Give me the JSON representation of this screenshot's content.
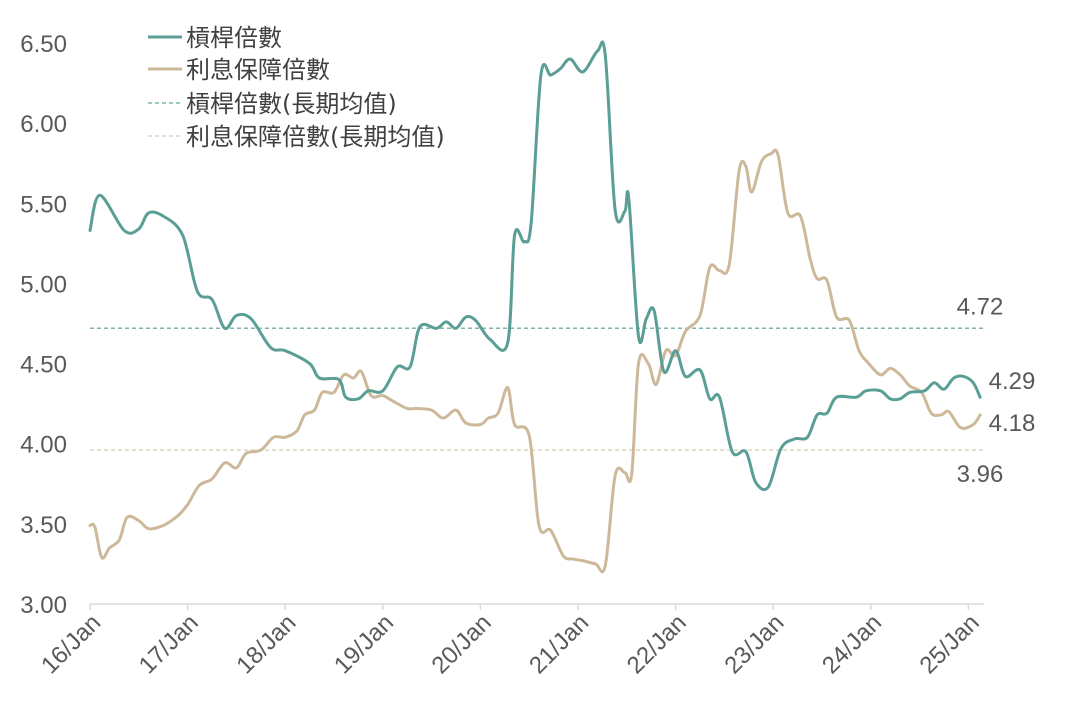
{
  "chart_data": {
    "type": "line",
    "x_tick_labels": [
      "16/Jan",
      "17/Jan",
      "18/Jan",
      "19/Jan",
      "20/Jan",
      "21/Jan",
      "22/Jan",
      "23/Jan",
      "24/Jan",
      "25/Jan"
    ],
    "y_tick_labels": [
      "3.00",
      "3.50",
      "4.00",
      "4.50",
      "5.00",
      "5.50",
      "6.00",
      "6.50"
    ],
    "ylim": [
      3.0,
      6.5
    ],
    "xlim": [
      2016.0,
      2025.16
    ],
    "grid": false,
    "legend_position": "top-left",
    "colors": {
      "leverage": "#5a9e96",
      "interest_coverage": "#cdb99a",
      "leverage_avg": "#7fb5ae",
      "interest_coverage_avg": "#ddd3bd",
      "axis": "#d9d9d9"
    },
    "series": [
      {
        "name": "槓桿倍數",
        "key": "leverage",
        "end_label": "4.29",
        "points": [
          [
            2016.0,
            5.33
          ],
          [
            2016.1,
            5.55
          ],
          [
            2016.35,
            5.33
          ],
          [
            2016.5,
            5.34
          ],
          [
            2016.6,
            5.44
          ],
          [
            2016.75,
            5.42
          ],
          [
            2016.95,
            5.3
          ],
          [
            2017.1,
            4.95
          ],
          [
            2017.25,
            4.9
          ],
          [
            2017.38,
            4.72
          ],
          [
            2017.5,
            4.8
          ],
          [
            2017.65,
            4.78
          ],
          [
            2017.85,
            4.6
          ],
          [
            2018.0,
            4.58
          ],
          [
            2018.25,
            4.5
          ],
          [
            2018.35,
            4.41
          ],
          [
            2018.55,
            4.4
          ],
          [
            2018.62,
            4.29
          ],
          [
            2018.75,
            4.28
          ],
          [
            2018.85,
            4.33
          ],
          [
            2019.0,
            4.33
          ],
          [
            2019.15,
            4.48
          ],
          [
            2019.28,
            4.48
          ],
          [
            2019.38,
            4.73
          ],
          [
            2019.55,
            4.72
          ],
          [
            2019.65,
            4.76
          ],
          [
            2019.75,
            4.72
          ],
          [
            2019.85,
            4.79
          ],
          [
            2019.95,
            4.77
          ],
          [
            2020.1,
            4.65
          ],
          [
            2020.28,
            4.63
          ],
          [
            2020.35,
            5.3
          ],
          [
            2020.45,
            5.26
          ],
          [
            2020.52,
            5.38
          ],
          [
            2020.62,
            6.3
          ],
          [
            2020.72,
            6.3
          ],
          [
            2020.82,
            6.34
          ],
          [
            2020.92,
            6.4
          ],
          [
            2021.05,
            6.32
          ],
          [
            2021.2,
            6.45
          ],
          [
            2021.28,
            6.42
          ],
          [
            2021.38,
            5.46
          ],
          [
            2021.48,
            5.45
          ],
          [
            2021.52,
            5.53
          ],
          [
            2021.62,
            4.67
          ],
          [
            2021.7,
            4.78
          ],
          [
            2021.78,
            4.83
          ],
          [
            2021.88,
            4.45
          ],
          [
            2022.0,
            4.58
          ],
          [
            2022.1,
            4.42
          ],
          [
            2022.25,
            4.46
          ],
          [
            2022.35,
            4.28
          ],
          [
            2022.45,
            4.29
          ],
          [
            2022.58,
            3.95
          ],
          [
            2022.72,
            3.95
          ],
          [
            2022.82,
            3.76
          ],
          [
            2022.95,
            3.73
          ],
          [
            2023.08,
            3.97
          ],
          [
            2023.22,
            4.03
          ],
          [
            2023.35,
            4.04
          ],
          [
            2023.45,
            4.18
          ],
          [
            2023.55,
            4.19
          ],
          [
            2023.65,
            4.29
          ],
          [
            2023.85,
            4.29
          ],
          [
            2023.95,
            4.33
          ],
          [
            2024.1,
            4.33
          ],
          [
            2024.2,
            4.28
          ],
          [
            2024.3,
            4.28
          ],
          [
            2024.4,
            4.32
          ],
          [
            2024.55,
            4.33
          ],
          [
            2024.65,
            4.38
          ],
          [
            2024.75,
            4.34
          ],
          [
            2024.85,
            4.41
          ],
          [
            2024.95,
            4.42
          ],
          [
            2025.05,
            4.38
          ],
          [
            2025.12,
            4.29
          ]
        ]
      },
      {
        "name": "利息保障倍數",
        "key": "interest_coverage",
        "end_label": "4.18",
        "points": [
          [
            2016.0,
            3.49
          ],
          [
            2016.05,
            3.48
          ],
          [
            2016.12,
            3.29
          ],
          [
            2016.2,
            3.35
          ],
          [
            2016.3,
            3.4
          ],
          [
            2016.38,
            3.54
          ],
          [
            2016.5,
            3.52
          ],
          [
            2016.6,
            3.47
          ],
          [
            2016.75,
            3.49
          ],
          [
            2016.9,
            3.55
          ],
          [
            2017.0,
            3.62
          ],
          [
            2017.12,
            3.74
          ],
          [
            2017.25,
            3.78
          ],
          [
            2017.38,
            3.88
          ],
          [
            2017.5,
            3.85
          ],
          [
            2017.6,
            3.94
          ],
          [
            2017.75,
            3.96
          ],
          [
            2017.88,
            4.04
          ],
          [
            2018.0,
            4.04
          ],
          [
            2018.12,
            4.08
          ],
          [
            2018.2,
            4.18
          ],
          [
            2018.3,
            4.21
          ],
          [
            2018.38,
            4.32
          ],
          [
            2018.5,
            4.32
          ],
          [
            2018.6,
            4.43
          ],
          [
            2018.7,
            4.41
          ],
          [
            2018.78,
            4.45
          ],
          [
            2018.88,
            4.3
          ],
          [
            2019.0,
            4.3
          ],
          [
            2019.12,
            4.26
          ],
          [
            2019.25,
            4.22
          ],
          [
            2019.35,
            4.22
          ],
          [
            2019.5,
            4.21
          ],
          [
            2019.62,
            4.16
          ],
          [
            2019.75,
            4.21
          ],
          [
            2019.85,
            4.13
          ],
          [
            2020.0,
            4.12
          ],
          [
            2020.08,
            4.16
          ],
          [
            2020.18,
            4.19
          ],
          [
            2020.28,
            4.35
          ],
          [
            2020.35,
            4.12
          ],
          [
            2020.5,
            4.05
          ],
          [
            2020.6,
            3.49
          ],
          [
            2020.72,
            3.46
          ],
          [
            2020.85,
            3.3
          ],
          [
            2020.95,
            3.28
          ],
          [
            2021.05,
            3.27
          ],
          [
            2021.18,
            3.25
          ],
          [
            2021.28,
            3.24
          ],
          [
            2021.38,
            3.8
          ],
          [
            2021.48,
            3.82
          ],
          [
            2021.55,
            3.81
          ],
          [
            2021.62,
            4.5
          ],
          [
            2021.72,
            4.5
          ],
          [
            2021.8,
            4.37
          ],
          [
            2021.9,
            4.58
          ],
          [
            2022.0,
            4.55
          ],
          [
            2022.1,
            4.7
          ],
          [
            2022.25,
            4.8
          ],
          [
            2022.35,
            5.1
          ],
          [
            2022.45,
            5.08
          ],
          [
            2022.55,
            5.12
          ],
          [
            2022.65,
            5.7
          ],
          [
            2022.72,
            5.73
          ],
          [
            2022.78,
            5.57
          ],
          [
            2022.88,
            5.76
          ],
          [
            2022.98,
            5.81
          ],
          [
            2023.05,
            5.8
          ],
          [
            2023.15,
            5.44
          ],
          [
            2023.28,
            5.42
          ],
          [
            2023.38,
            5.15
          ],
          [
            2023.45,
            5.03
          ],
          [
            2023.55,
            5.02
          ],
          [
            2023.65,
            4.79
          ],
          [
            2023.78,
            4.77
          ],
          [
            2023.88,
            4.58
          ],
          [
            2023.98,
            4.5
          ],
          [
            2024.1,
            4.43
          ],
          [
            2024.2,
            4.47
          ],
          [
            2024.3,
            4.43
          ],
          [
            2024.4,
            4.36
          ],
          [
            2024.52,
            4.32
          ],
          [
            2024.62,
            4.19
          ],
          [
            2024.72,
            4.18
          ],
          [
            2024.8,
            4.2
          ],
          [
            2024.92,
            4.1
          ],
          [
            2025.05,
            4.12
          ],
          [
            2025.12,
            4.18
          ]
        ]
      },
      {
        "name": "槓桿倍數(長期均值)",
        "key": "leverage_avg",
        "value": 4.72,
        "label": "4.72"
      },
      {
        "name": "利息保障倍數(長期均值)",
        "key": "interest_coverage_avg",
        "value": 3.96,
        "label": "3.96"
      }
    ]
  }
}
